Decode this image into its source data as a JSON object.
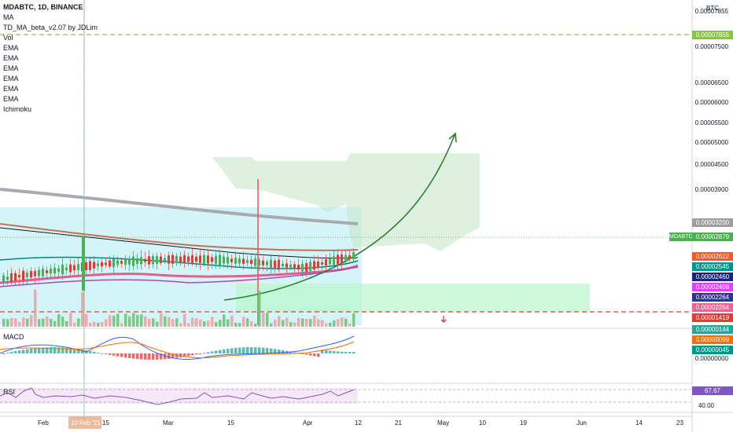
{
  "legend": {
    "symbol": "MDABTC, 1D, BINANCE",
    "indicators": [
      "MA",
      "TD_MA_beta_v2.07 by JDLim",
      "Vol",
      "EMA",
      "EMA",
      "EMA",
      "EMA",
      "EMA",
      "EMA",
      "Ichimoku"
    ]
  },
  "currency_label": "BTC",
  "price_axis": [
    "0.00007855",
    "0.00007500",
    "0.00006500",
    "0.00006000",
    "0.00005500",
    "0.00005000",
    "0.00004500",
    "0.00003900",
    "0.00003200",
    "0.00002879"
  ],
  "price_tags": [
    {
      "text": "0.00007855",
      "color": "#8bc34a"
    },
    {
      "text": "0.00003200",
      "color": "#9e9e9e"
    },
    {
      "text": "0.00002879",
      "color": "#4caf50"
    },
    {
      "text": "0.00002622",
      "color": "#ff5722"
    },
    {
      "text": "0.00002545",
      "color": "#009688"
    },
    {
      "text": "0.00002460",
      "color": "#1a237e"
    },
    {
      "text": "0.00002408",
      "color": "#e040fb"
    },
    {
      "text": "0.00002264",
      "color": "#283593"
    },
    {
      "text": "0.00002264",
      "color": "#f06292"
    },
    {
      "text": "0.00001419",
      "color": "#e53935"
    },
    {
      "text": "0.00000144",
      "color": "#26a69a"
    },
    {
      "text": "0.00000099",
      "color": "#ff6d00"
    },
    {
      "text": "0.00000045",
      "color": "#009688"
    }
  ],
  "symbol_tag": "MDABTC",
  "macd": {
    "label": "MACD",
    "axis_value": "0.00000000"
  },
  "rsi": {
    "label": "RSI",
    "value": "67.67",
    "axis_value": "40.00"
  },
  "x_axis": [
    "Feb",
    "10 Feb '21",
    "15",
    "Mar",
    "15",
    "Apr",
    "12",
    "21",
    "May",
    "10",
    "19",
    "Jun",
    "14",
    "23"
  ]
}
